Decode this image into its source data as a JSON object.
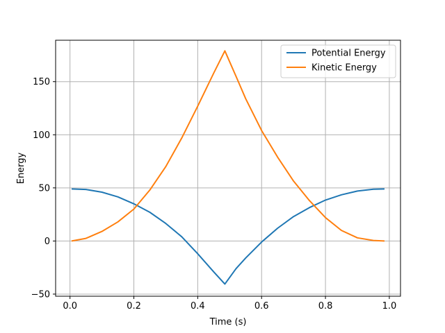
{
  "chart_data": {
    "type": "line",
    "title": "",
    "xlabel": "Time (s)",
    "ylabel": "Energy",
    "xlim": [
      -0.045,
      1.035
    ],
    "ylim": [
      -52,
      189
    ],
    "xticks": [
      0.0,
      0.2,
      0.4,
      0.6,
      0.8,
      1.0
    ],
    "xtick_labels": [
      "0.0",
      "0.2",
      "0.4",
      "0.6",
      "0.8",
      "1.0"
    ],
    "yticks": [
      -50,
      0,
      50,
      100,
      150
    ],
    "ytick_labels": [
      "−50",
      "0",
      "50",
      "100",
      "150"
    ],
    "grid": true,
    "legend_position": "top-right",
    "series": [
      {
        "name": "Potential Energy",
        "color": "#1f77b4",
        "x": [
          0.005,
          0.05,
          0.1,
          0.15,
          0.2,
          0.25,
          0.3,
          0.35,
          0.4,
          0.45,
          0.485,
          0.52,
          0.55,
          0.6,
          0.65,
          0.7,
          0.75,
          0.8,
          0.85,
          0.9,
          0.95,
          0.985
        ],
        "y": [
          49,
          48.5,
          46,
          41.5,
          35,
          27,
          16.5,
          4,
          -12,
          -29,
          -40.5,
          -26,
          -16,
          -1,
          12,
          23,
          31.5,
          38.5,
          43.5,
          47,
          48.7,
          49
        ]
      },
      {
        "name": "Kinetic Energy",
        "color": "#ff7f0e",
        "x": [
          0.005,
          0.05,
          0.1,
          0.15,
          0.2,
          0.25,
          0.3,
          0.35,
          0.4,
          0.45,
          0.485,
          0.52,
          0.55,
          0.6,
          0.65,
          0.7,
          0.75,
          0.8,
          0.85,
          0.9,
          0.95,
          0.985
        ],
        "y": [
          0,
          2.5,
          9,
          18,
          30,
          48,
          70,
          97,
          127,
          158,
          179,
          155,
          134,
          104,
          79,
          56.5,
          38,
          22,
          10,
          3,
          0.5,
          0
        ]
      }
    ]
  }
}
